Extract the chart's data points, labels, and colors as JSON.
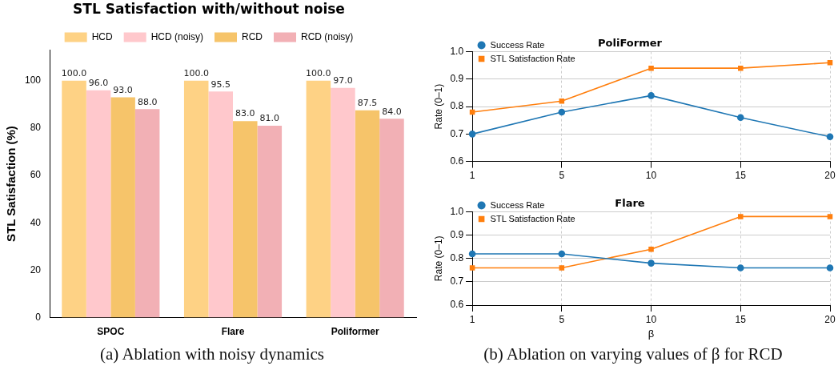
{
  "chart_data": [
    {
      "type": "bar",
      "title": "STL Satisfaction with/without noise",
      "ylabel": "STL Satisfaction (%)",
      "categories": [
        "SPOC",
        "Flare",
        "Poliformer"
      ],
      "series": [
        {
          "name": "HCD",
          "color": "#fed285",
          "values": [
            100.0,
            100.0,
            100.0
          ],
          "value_labels": [
            "100.0",
            "100.0",
            "100.0"
          ]
        },
        {
          "name": "HCD (noisy)",
          "color": "#ffc8cc",
          "values": [
            96.0,
            95.5,
            97.0
          ],
          "value_labels": [
            "96.0",
            "95.5",
            "97.0"
          ]
        },
        {
          "name": "RCD",
          "color": "#f6c46a",
          "values": [
            93.0,
            83.0,
            87.5
          ],
          "value_labels": [
            "93.0",
            "83.0",
            "87.5"
          ]
        },
        {
          "name": "RCD (noisy)",
          "color": "#f2b0b5",
          "values": [
            88.0,
            81.0,
            84.0
          ],
          "value_labels": [
            "88.0",
            "81.0",
            "84.0"
          ]
        }
      ],
      "ylim": [
        0,
        113
      ],
      "yticks": [
        0,
        20,
        40,
        60,
        80,
        100
      ],
      "grid": false,
      "legend": "top",
      "annotations": [
        "(a) Ablation with noisy dynamics"
      ]
    },
    {
      "type": "line",
      "title": "PoliFormer",
      "ylabel": "Rate (0–1)",
      "categories": [
        "1",
        "5",
        "10",
        "15",
        "20"
      ],
      "series": [
        {
          "name": "Success Rate",
          "color": "#1f77b4",
          "marker": "circle",
          "values": [
            0.7,
            0.78,
            0.84,
            0.76,
            0.69
          ]
        },
        {
          "name": "STL Satisfaction Rate",
          "color": "#ff7f0e",
          "marker": "square",
          "values": [
            0.78,
            0.82,
            0.94,
            0.94,
            0.96
          ]
        }
      ],
      "ylim": [
        0.6,
        1.0
      ],
      "yticks": [
        0.6,
        0.7,
        0.8,
        0.9,
        {
          "value": 1.0,
          "label": "1.0"
        }
      ],
      "grid": true,
      "legend": "top left",
      "line_style": "solid"
    },
    {
      "type": "line",
      "title": "Flare",
      "ylabel": "Rate (0–1)",
      "xlabel": "β",
      "categories": [
        "1",
        "5",
        "10",
        "15",
        "20"
      ],
      "series": [
        {
          "name": "Success Rate",
          "color": "#1f77b4",
          "marker": "circle",
          "values": [
            0.82,
            0.82,
            0.78,
            0.76,
            0.76
          ]
        },
        {
          "name": "STL Satisfaction Rate",
          "color": "#ff7f0e",
          "marker": "square",
          "values": [
            0.76,
            0.76,
            0.84,
            0.98,
            0.98
          ]
        }
      ],
      "ylim": [
        0.6,
        1.0
      ],
      "yticks": [
        0.6,
        0.7,
        0.8,
        0.9,
        {
          "value": 1.0,
          "label": "1.0"
        }
      ],
      "grid": true,
      "legend": "top left",
      "line_style": "solid",
      "annotations": [
        "(b) Ablation on varying values of β for RCD"
      ]
    }
  ]
}
